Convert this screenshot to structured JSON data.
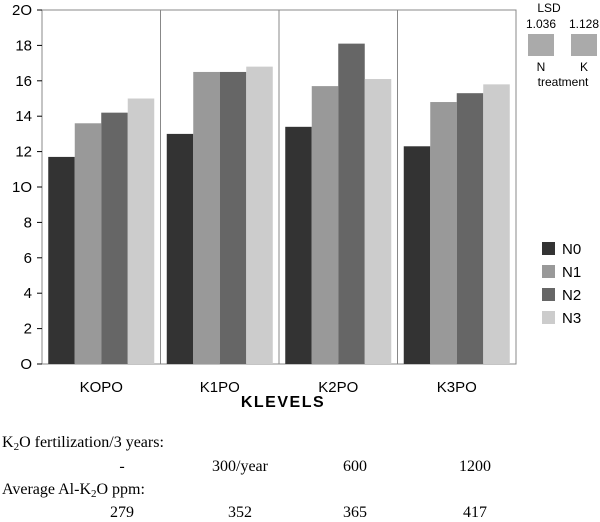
{
  "chart_data": {
    "type": "bar",
    "categories": [
      "KOPO",
      "K1PO",
      "K2PO",
      "K3PO"
    ],
    "series": [
      {
        "name": "N0",
        "values": [
          11.7,
          13.0,
          13.4,
          12.3
        ],
        "color": "#333333"
      },
      {
        "name": "N1",
        "values": [
          13.6,
          16.5,
          15.7,
          14.8
        ],
        "color": "#999999"
      },
      {
        "name": "N2",
        "values": [
          14.2,
          16.5,
          18.1,
          15.3
        ],
        "color": "#666666"
      },
      {
        "name": "N3",
        "values": [
          15.0,
          16.8,
          16.1,
          15.8
        ],
        "color": "#cccccc"
      }
    ],
    "xlabel": "KLEVELS",
    "ylabel": "",
    "ylim": [
      0,
      20
    ],
    "yticks": [
      "O",
      "2",
      "4",
      "6",
      "8",
      "1O",
      "12",
      "14",
      "16",
      "18",
      "2O"
    ],
    "grid": false,
    "legend_position": "right",
    "lsd": {
      "title": "LSD",
      "items": [
        {
          "value": "1.036",
          "label": "N"
        },
        {
          "value": "1.128",
          "label": "K"
        }
      ],
      "caption": "treatment",
      "color": "#aaaaaa"
    }
  },
  "table": {
    "row1_label": {
      "pre": "K",
      "sub": "2",
      "post": "O fertilization/3 years:"
    },
    "row1_values": [
      "-",
      "300/year",
      "600",
      "1200"
    ],
    "row2_label": {
      "pre": "Average Al-K",
      "sub": "2",
      "post": "O ppm:"
    },
    "row2_values": [
      "279",
      "352",
      "365",
      "417"
    ]
  }
}
